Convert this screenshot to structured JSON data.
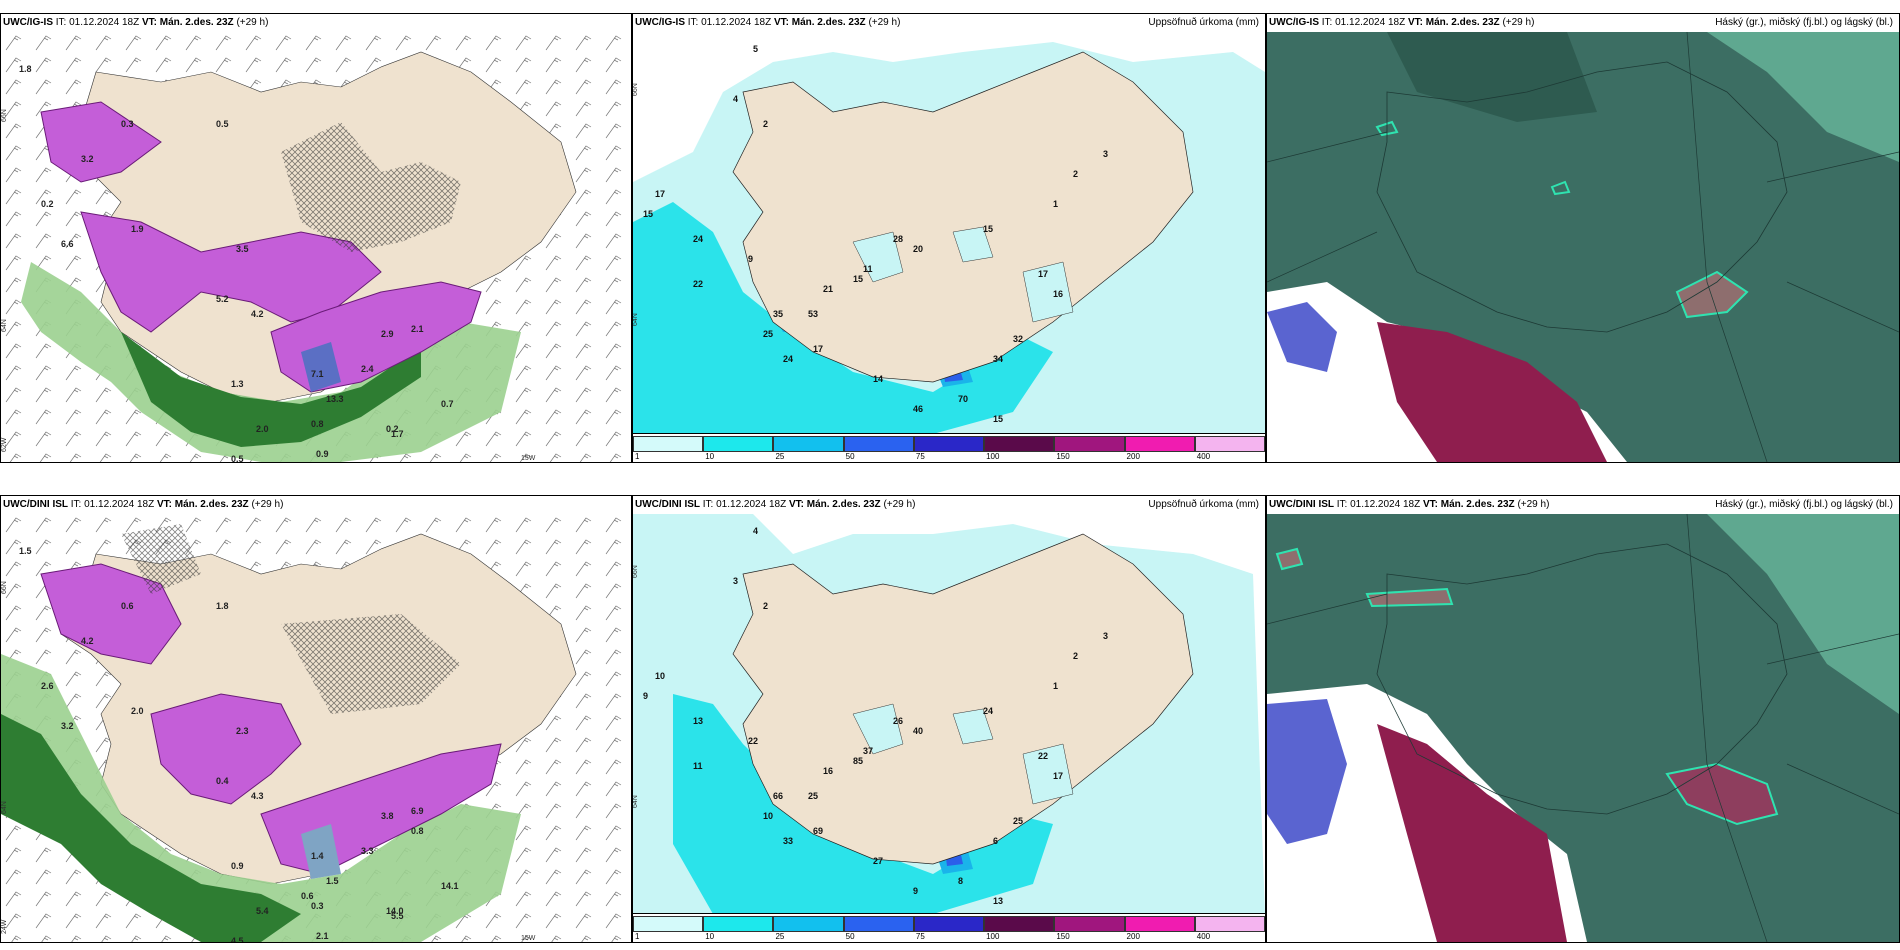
{
  "rows": [
    {
      "model": "UWC/IG-IS",
      "it_label": "IT:",
      "it_value": "01.12.2024 18Z",
      "vt_label": "VT:",
      "vt_value": "Mán. 2.des. 23Z",
      "lead": "(+29 h)",
      "precip_title": "Uppsöfnuð úrkoma (mm)",
      "cloud_title": "Háský (gr.), miðský (fj.bl.) og lágský (bl.)",
      "grid_labels": [
        "66N",
        "64N",
        "62W",
        "15W"
      ],
      "snow_values": [
        "1.8",
        "0.3",
        "0.5",
        "3.2",
        "0.2",
        "1.9",
        "6.6",
        "3.5",
        "5.2",
        "4.2",
        "2.9",
        "2.1",
        "7.1",
        "13.3",
        "0.8",
        "0.9",
        "0.5",
        "1.7",
        "0.7",
        "0.2",
        "2.4",
        "1.3",
        "2.0"
      ],
      "precip_values": [
        "5",
        "4",
        "2",
        "17",
        "15",
        "24",
        "22",
        "9",
        "35",
        "53",
        "25",
        "24",
        "17",
        "14",
        "46",
        "70",
        "34",
        "32",
        "15",
        "21",
        "15",
        "11",
        "20",
        "28",
        "15",
        "17",
        "16",
        "1",
        "2",
        "3"
      ]
    },
    {
      "model": "UWC/DINI ISL",
      "it_label": "IT:",
      "it_value": "01.12.2024 18Z",
      "vt_label": "VT:",
      "vt_value": "Mán. 2.des. 23Z",
      "lead": "(+29 h)",
      "precip_title": "Uppsöfnuð úrkoma (mm)",
      "cloud_title": "Háský (gr.), miðský (fj.bl.) og lágský (bl.)",
      "grid_labels": [
        "66N",
        "64N",
        "24W",
        "15W"
      ],
      "snow_values": [
        "1.5",
        "0.6",
        "1.8",
        "4.2",
        "2.6",
        "2.0",
        "3.2",
        "2.3",
        "0.4",
        "4.3",
        "3.8",
        "6.9",
        "1.4",
        "1.5",
        "0.3",
        "2.1",
        "4.5",
        "5.5",
        "14.1",
        "14.0",
        "3.3",
        "0.9",
        "5.4",
        "0.8",
        "0.6"
      ],
      "precip_values": [
        "4",
        "3",
        "2",
        "10",
        "9",
        "13",
        "11",
        "22",
        "66",
        "25",
        "10",
        "33",
        "69",
        "27",
        "9",
        "8",
        "6",
        "25",
        "13",
        "16",
        "85",
        "37",
        "40",
        "26",
        "24",
        "22",
        "17",
        "1",
        "2",
        "3"
      ]
    }
  ],
  "legend": {
    "labels": [
      "1",
      "10",
      "25",
      "50",
      "75",
      "100",
      "150",
      "200",
      "400"
    ],
    "colors": [
      "#d4fafa",
      "#1de8ec",
      "#12c0ee",
      "#2a62f0",
      "#2a27c8",
      "#5a0a4a",
      "#a0167e",
      "#f01cb0",
      "#f4b4ef"
    ]
  }
}
